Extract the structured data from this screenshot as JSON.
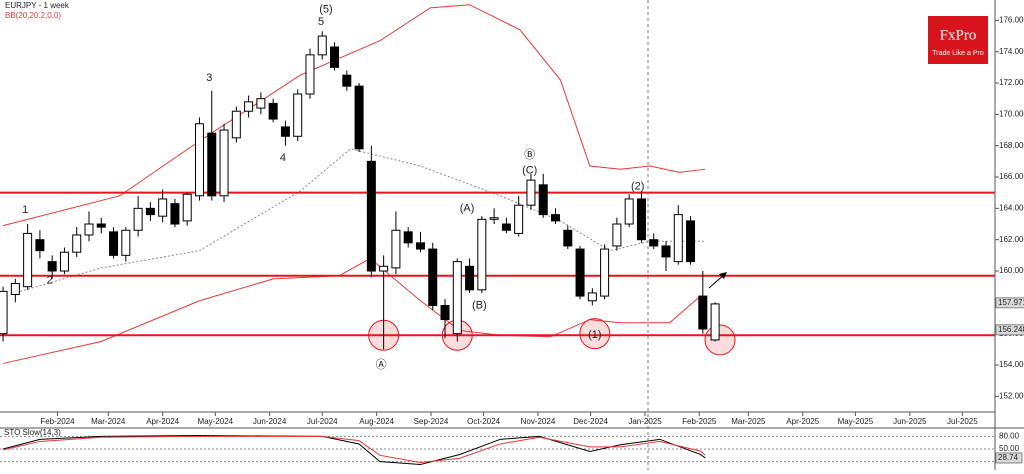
{
  "chart_data": {
    "type": "candlestick",
    "title": "EURJPY - 1 week",
    "subtitle": "BB(20,20.2,0,0)",
    "x": [
      0,
      1,
      2,
      3,
      4,
      5,
      6,
      7,
      8,
      9,
      10,
      11,
      12,
      13,
      14,
      15,
      16,
      17,
      18,
      19,
      20,
      21,
      22,
      23,
      24,
      25,
      26,
      27,
      28,
      29,
      30,
      31,
      32,
      33,
      34,
      35,
      36,
      37,
      38,
      39,
      40,
      41,
      42,
      43,
      44,
      45,
      46,
      47,
      48,
      49,
      50,
      51,
      52,
      53,
      54,
      55,
      56,
      57,
      58
    ],
    "open": [
      156.0,
      158.5,
      159.0,
      162.0,
      160.6,
      160.0,
      161.2,
      162.3,
      163.0,
      162.5,
      161.0,
      162.6,
      164.0,
      163.5,
      164.3,
      163.2,
      164.8,
      168.8,
      164.8,
      168.5,
      170.2,
      170.4,
      170.7,
      169.2,
      168.6,
      171.3,
      173.8,
      174.3,
      172.5,
      171.8,
      167.0,
      160.0,
      160.2,
      162.5,
      161.8,
      161.4,
      157.8,
      156.0,
      160.3,
      158.8,
      163.3,
      163.0,
      162.4,
      164.2,
      165.5,
      163.6,
      162.6,
      161.4,
      158.1,
      158.4,
      161.6,
      163.0,
      164.6,
      162.0,
      161.6,
      160.6,
      163.2,
      158.4,
      155.6
    ],
    "high": [
      159.0,
      159.5,
      163.0,
      162.6,
      161.0,
      161.5,
      162.8,
      163.8,
      163.4,
      162.8,
      162.8,
      164.8,
      164.4,
      165.2,
      164.6,
      165.0,
      169.8,
      171.5,
      169.4,
      170.5,
      171.2,
      171.4,
      171.0,
      169.6,
      171.6,
      174.2,
      175.3,
      174.6,
      172.8,
      172.0,
      168.0,
      161.0,
      163.8,
      162.8,
      162.5,
      161.8,
      158.2,
      160.8,
      160.8,
      163.5,
      164.0,
      163.4,
      164.8,
      166.2,
      166.2,
      164.0,
      162.9,
      161.6,
      158.9,
      161.7,
      163.4,
      164.9,
      165.1,
      162.4,
      161.9,
      164.2,
      163.5,
      160.0,
      158.0
    ],
    "low": [
      155.5,
      158.0,
      158.8,
      160.8,
      159.5,
      159.8,
      160.9,
      161.9,
      162.4,
      160.8,
      160.6,
      162.2,
      163.2,
      163.1,
      162.8,
      162.9,
      164.5,
      164.5,
      164.4,
      168.2,
      169.8,
      170.0,
      169.5,
      168.0,
      168.3,
      171.0,
      173.5,
      172.8,
      171.5,
      167.6,
      159.6,
      155.0,
      159.8,
      161.5,
      161.2,
      157.5,
      155.7,
      155.5,
      158.6,
      158.6,
      163.0,
      162.4,
      162.2,
      163.9,
      163.4,
      163.0,
      161.4,
      158.2,
      157.8,
      158.2,
      161.3,
      162.8,
      161.8,
      161.4,
      160.0,
      160.4,
      160.4,
      156.0,
      155.5
    ],
    "close": [
      158.7,
      159.2,
      162.4,
      161.3,
      160.0,
      161.2,
      162.3,
      163.0,
      162.8,
      161.0,
      162.6,
      164.0,
      163.6,
      164.6,
      163.0,
      164.9,
      169.4,
      164.8,
      169.0,
      170.2,
      170.8,
      171.0,
      169.7,
      168.6,
      171.3,
      173.8,
      175.0,
      173.0,
      171.8,
      167.8,
      160.0,
      160.3,
      162.6,
      161.8,
      161.4,
      157.8,
      156.9,
      160.6,
      158.8,
      163.3,
      163.4,
      162.6,
      164.2,
      165.8,
      163.6,
      163.2,
      161.6,
      158.4,
      158.6,
      161.4,
      163.0,
      164.6,
      162.0,
      161.6,
      160.9,
      163.6,
      160.6,
      156.3,
      157.9
    ],
    "up_color": "#ffffff",
    "down_color": "#000000",
    "xlim": [
      -0.25,
      80.8
    ],
    "xticks": [
      {
        "value": 4.43,
        "label": "Feb-2024"
      },
      {
        "value": 8.57,
        "label": "Mar-2024"
      },
      {
        "value": 13,
        "label": "Apr-2024"
      },
      {
        "value": 17.29,
        "label": "May-2024"
      },
      {
        "value": 21.71,
        "label": "Jun-2024"
      },
      {
        "value": 26,
        "label": "Jul-2024"
      },
      {
        "value": 30.43,
        "label": "Aug-2024"
      },
      {
        "value": 34.86,
        "label": "Sep-2024"
      },
      {
        "value": 39.14,
        "label": "Oct-2024"
      },
      {
        "value": 43.57,
        "label": "Nov-2024"
      },
      {
        "value": 47.86,
        "label": "Dec-2024"
      },
      {
        "value": 52.29,
        "label": "Jan-2025"
      },
      {
        "value": 56.71,
        "label": "Feb-2025"
      },
      {
        "value": 60.71,
        "label": "Mar-2025"
      },
      {
        "value": 65.14,
        "label": "Apr-2025"
      },
      {
        "value": 69.43,
        "label": "May-2025"
      },
      {
        "value": 73.86,
        "label": "Jun-2025"
      },
      {
        "value": 78.14,
        "label": "Jul-2025"
      }
    ],
    "ylim": [
      151,
      177.3
    ],
    "yticks": [
      {
        "value": 152,
        "label": "152.000"
      },
      {
        "value": 154,
        "label": "154.000"
      },
      {
        "value": 156,
        "label": "156.000"
      },
      {
        "value": 158,
        "label": "158.000"
      },
      {
        "value": 160,
        "label": "160.000"
      },
      {
        "value": 162,
        "label": "162.000"
      },
      {
        "value": 164,
        "label": "164.000"
      },
      {
        "value": 166,
        "label": "166.000"
      },
      {
        "value": 168,
        "label": "168.000"
      },
      {
        "value": 170,
        "label": "170.000"
      },
      {
        "value": 172,
        "label": "172.000"
      },
      {
        "value": 174,
        "label": "174.000"
      },
      {
        "value": 176,
        "label": "176.000"
      }
    ],
    "levels": [
      165.0,
      159.7,
      155.9
    ],
    "level_color": "#e8141b",
    "bands": [
      {
        "color": "#e53935",
        "dash": false,
        "x": [
          0,
          9.5,
          16,
          24.2,
          30.7,
          34.8,
          38,
          42.1,
          45.4,
          47.8,
          50.3,
          52.7,
          55.1,
          57.2
        ],
        "values": [
          162.9,
          164.8,
          168.3,
          172.5,
          174.7,
          176.8,
          177.0,
          175.4,
          172.2,
          166.7,
          166.5,
          166.7,
          166.3,
          166.5
        ]
      },
      {
        "color": "#e53935",
        "dash": false,
        "x": [
          0,
          8,
          16,
          22,
          27.4,
          29.9,
          34,
          37.2,
          40.5,
          44.6,
          47.8,
          50.3,
          54.3,
          56.8
        ],
        "values": [
          154.1,
          155.5,
          158.1,
          159.5,
          159.7,
          160.8,
          158.1,
          156.2,
          155.9,
          155.8,
          156.9,
          156.7,
          156.7,
          158.4
        ]
      },
      {
        "color": "#888888",
        "dash": true,
        "x": [
          1.4,
          8,
          16,
          24.2,
          28.3,
          34,
          40.5,
          45.4,
          49.4,
          52.7,
          57.2
        ],
        "values": [
          158.7,
          160.2,
          161.3,
          165.1,
          167.8,
          166.7,
          164.8,
          163.2,
          161.3,
          161.9,
          161.9
        ]
      }
    ],
    "annotations": [
      {
        "text": "1"
      },
      {
        "text": "2"
      },
      {
        "text": "3"
      },
      {
        "text": "4"
      },
      {
        "text": "5"
      },
      {
        "text": "(5)"
      },
      {
        "text": "Ⓐ"
      },
      {
        "text": "(A)"
      },
      {
        "text": "(B)"
      },
      {
        "text": "Ⓑ"
      },
      {
        "text": "(C)"
      },
      {
        "text": "(1)"
      },
      {
        "text": "(2)"
      }
    ],
    "price_labels": [
      {
        "value": 157.971,
        "label": "157.971"
      },
      {
        "value": 156.248,
        "label": "156.248"
      }
    ],
    "logo": {
      "brand": "FxPro",
      "tagline": "Trade Like a Pro"
    },
    "oscillator": {
      "title": "STO Slow(14,3)",
      "ylim": [
        0,
        100
      ],
      "yticks": [
        {
          "value": 80,
          "label": "80.00"
        },
        {
          "value": 50,
          "label": "50.00"
        },
        {
          "value": 20,
          "label": "20.00"
        }
      ],
      "current": {
        "value": 28.74,
        "label": "28.74"
      },
      "series": [
        {
          "color": "#000000",
          "x": [
            0,
            3,
            8,
            16,
            26,
            29,
            30.7,
            34,
            37.2,
            40.5,
            43.7,
            47.8,
            50.3,
            53.5,
            56.8,
            57.2
          ],
          "values": [
            50,
            73,
            80,
            82,
            80,
            62,
            20,
            13,
            37,
            73,
            80,
            44,
            60,
            73,
            37,
            28.74
          ]
        },
        {
          "color": "#e53935",
          "x": [
            0,
            3,
            8,
            16,
            26,
            29,
            30.7,
            34,
            37.2,
            40.5,
            43.7,
            47.8,
            50.3,
            53.5,
            56.8,
            57.2
          ],
          "values": [
            48,
            68,
            78,
            80,
            80,
            70,
            35,
            18,
            28,
            62,
            78,
            55,
            55,
            68,
            45,
            35
          ]
        }
      ]
    }
  }
}
